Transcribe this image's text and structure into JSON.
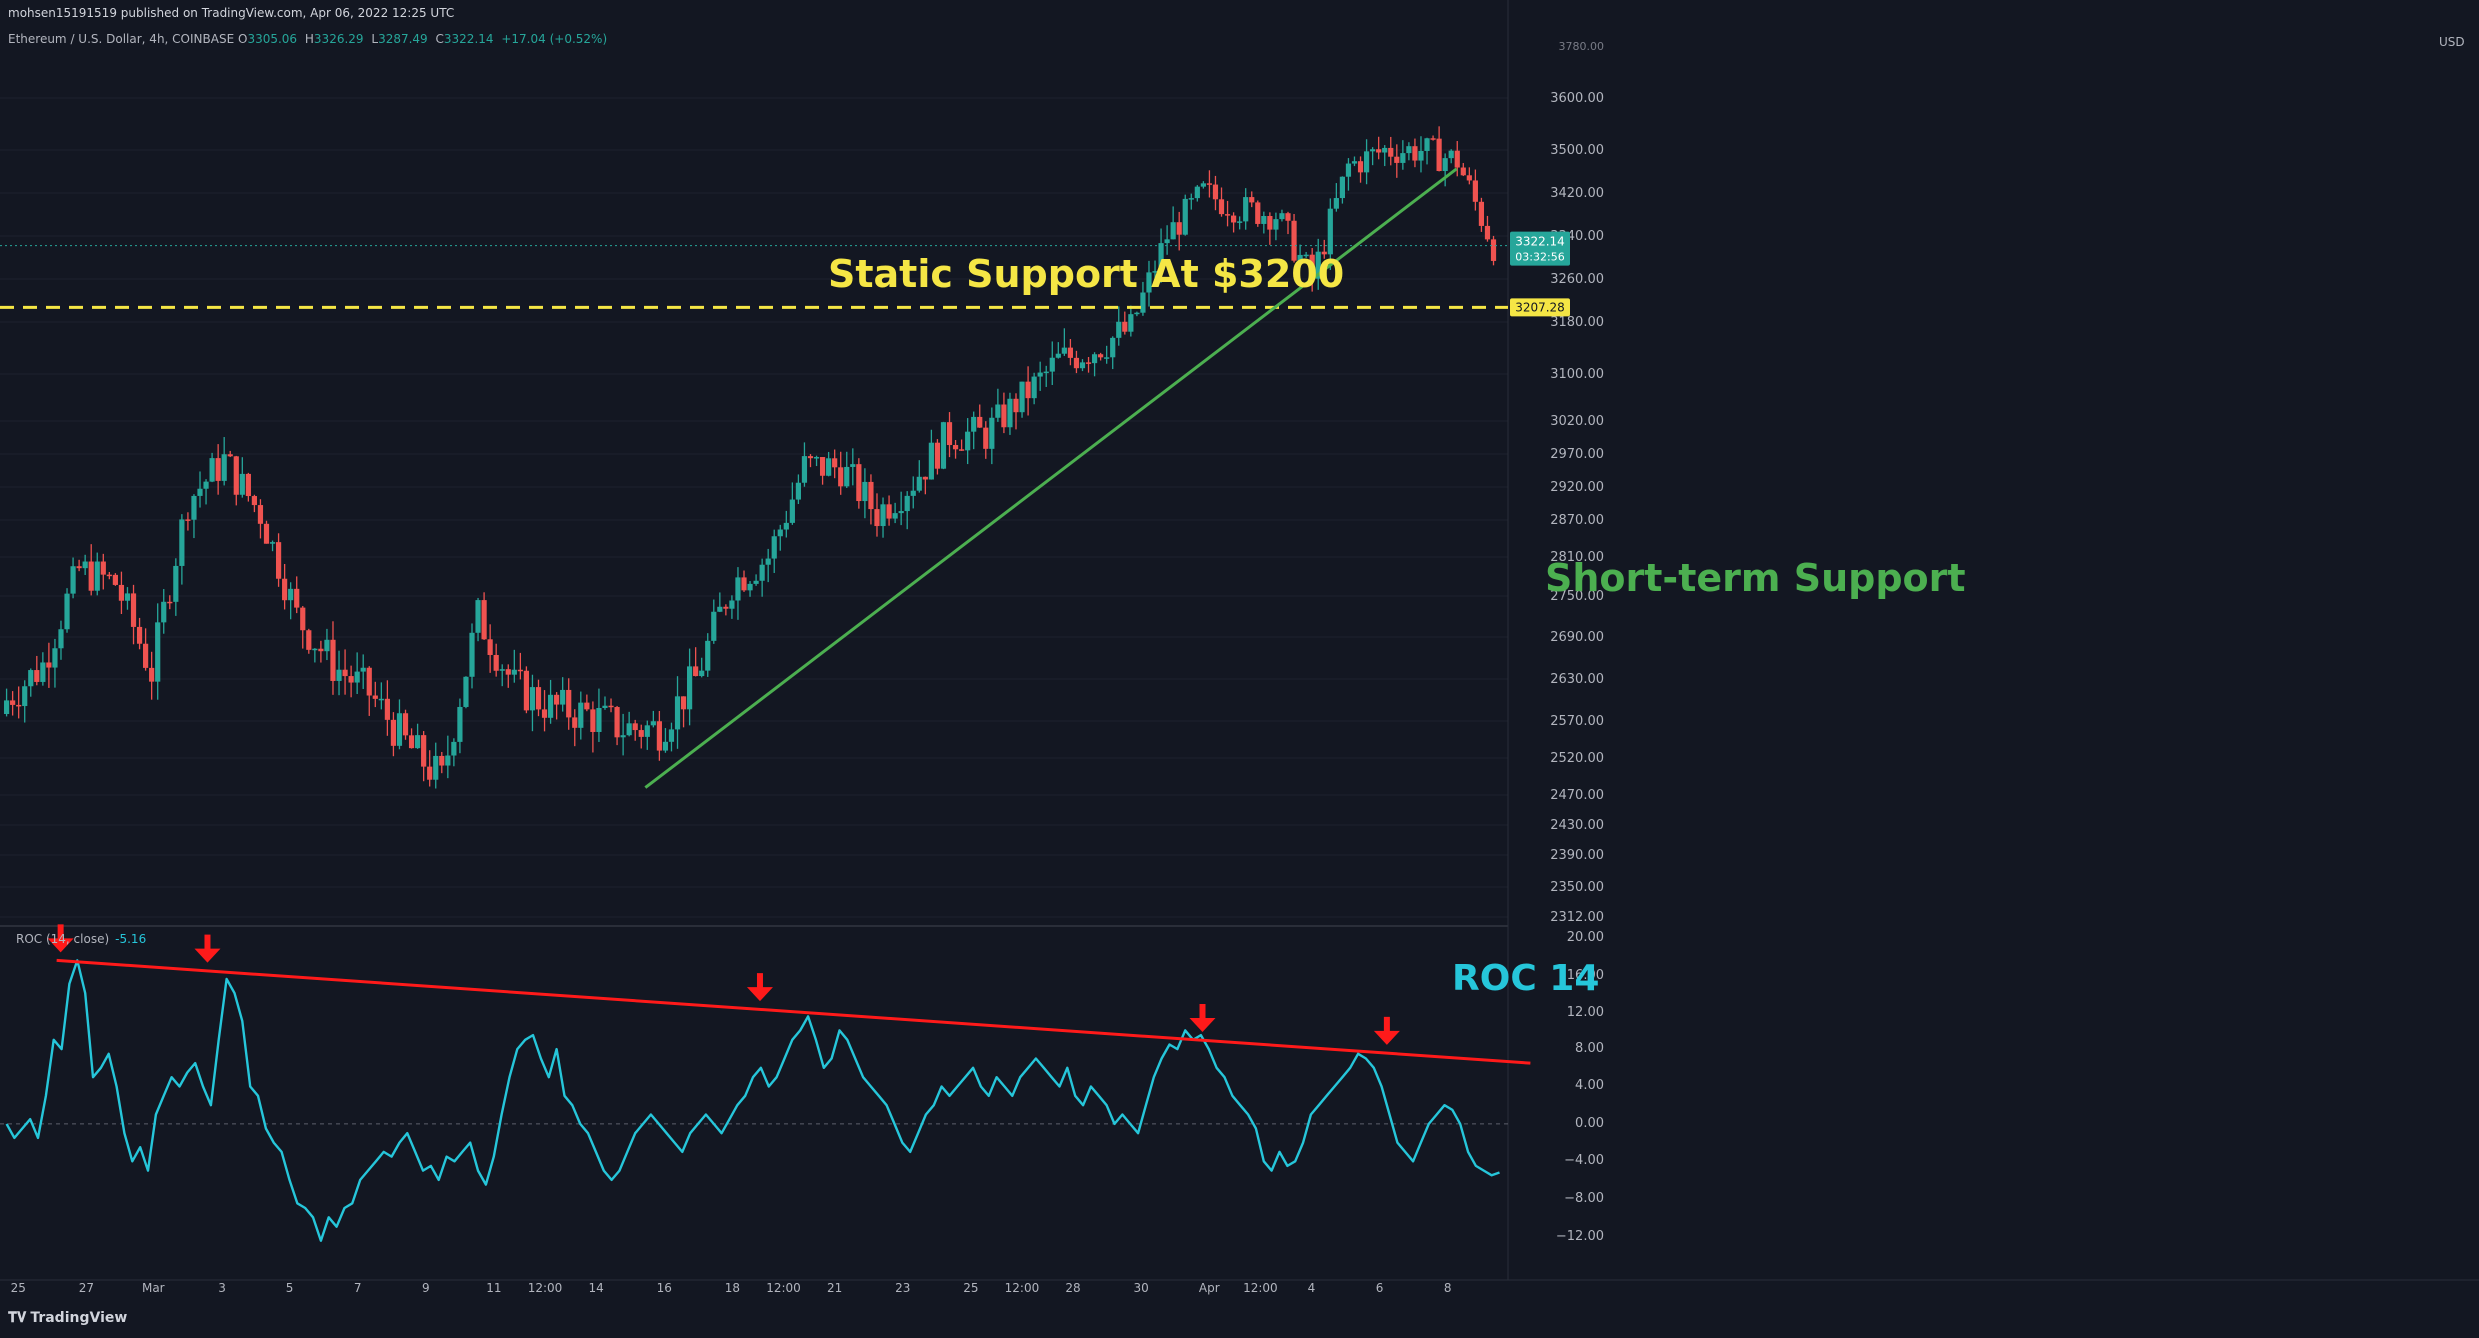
{
  "header": {
    "published": "mohsen15191519 published on TradingView.com, Apr 06, 2022 12:25 UTC",
    "symbol": "Ethereum / U.S. Dollar, 4h, COINBASE",
    "open_label": "O",
    "open": "3305.06",
    "high_label": "H",
    "high": "3326.29",
    "low_label": "L",
    "low": "3287.49",
    "close_label": "C",
    "close": "3322.14",
    "change": "+17.04 (+0.52%)"
  },
  "price_axis": {
    "currency": "USD",
    "top_partial_label": "3780.00",
    "labels": [
      "3600.00",
      "3500.00",
      "3420.00",
      "3340.00",
      "3260.00",
      "3180.00",
      "3100.00",
      "3020.00",
      "2970.00",
      "2920.00",
      "2870.00",
      "2810.00",
      "2750.00",
      "2690.00",
      "2630.00",
      "2570.00",
      "2520.00",
      "2470.00",
      "2430.00",
      "2390.00",
      "2350.00",
      "2312.00"
    ],
    "current_price_tag": "3322.14",
    "countdown": "03:32:56",
    "support_tag": "3207.28",
    "colors": {
      "up": "#26a69a",
      "down": "#ef5350",
      "support_tag_bg": "#f5e645",
      "current_tag_bg": "#26a69a"
    }
  },
  "roc_panel": {
    "indicator_label": "ROC (14, close)",
    "indicator_value": "-5.16",
    "axis_labels": [
      "20.00",
      "16.00",
      "12.00",
      "8.00",
      "4.00",
      "0.00",
      "−4.00",
      "−8.00",
      "−12.00"
    ],
    "line_color": "#26c6da"
  },
  "time_axis": {
    "labels": [
      "25",
      "27",
      "Mar",
      "3",
      "5",
      "7",
      "9",
      "11",
      "12:00",
      "14",
      "16",
      "18",
      "12:00",
      "21",
      "23",
      "25",
      "12:00",
      "28",
      "30",
      "Apr",
      "12:00",
      "4",
      "6",
      "8"
    ]
  },
  "annotations": {
    "static_support": "Static Support At $3200",
    "short_term_support": "Short-term Support",
    "roc_label": "ROC 14",
    "colors": {
      "yellow": "#f5e645",
      "green": "#4caf50",
      "red": "#ff1a1a",
      "cyan": "#26c6da"
    }
  },
  "chart_data": [
    {
      "type": "candlestick",
      "title": "Ethereum / U.S. Dollar, 4h, COINBASE",
      "ylim": [
        2290,
        3790
      ],
      "support_level": 3207.28,
      "last_close": 3322.14,
      "trendline": {
        "from": [
          "Mar 14",
          2480
        ],
        "to": [
          "Apr 5",
          3465
        ]
      },
      "close_path_approx": [
        [
          "Feb 24",
          2600
        ],
        [
          "Feb 25",
          2650
        ],
        [
          "Feb 26",
          2790
        ],
        [
          "Feb 27",
          2770
        ],
        [
          "Feb 28",
          2640
        ],
        [
          "Mar 1",
          2900
        ],
        [
          "Mar 2",
          2960
        ],
        [
          "Mar 3",
          2880
        ],
        [
          "Mar 4",
          2720
        ],
        [
          "Mar 5",
          2650
        ],
        [
          "Mar 6",
          2610
        ],
        [
          "Mar 7",
          2540
        ],
        [
          "Mar 8",
          2490
        ],
        [
          "Mar 9",
          2720
        ],
        [
          "Mar 10",
          2620
        ],
        [
          "Mar 11",
          2590
        ],
        [
          "Mar 12",
          2580
        ],
        [
          "Mar 13",
          2560
        ],
        [
          "Mar 14",
          2560
        ],
        [
          "Mar 15",
          2630
        ],
        [
          "Mar 16",
          2770
        ],
        [
          "Mar 17",
          2810
        ],
        [
          "Mar 18",
          2950
        ],
        [
          "Mar 19",
          2950
        ],
        [
          "Mar 20",
          2880
        ],
        [
          "Mar 21",
          2930
        ],
        [
          "Mar 22",
          3000
        ],
        [
          "Mar 23",
          3000
        ],
        [
          "Mar 24",
          3060
        ],
        [
          "Mar 25",
          3120
        ],
        [
          "Mar 26",
          3140
        ],
        [
          "Mar 27",
          3170
        ],
        [
          "Mar 28",
          3340
        ],
        [
          "Mar 29",
          3420
        ],
        [
          "Mar 30",
          3390
        ],
        [
          "Mar 31",
          3380
        ],
        [
          "Apr 1",
          3260
        ],
        [
          "Apr 2",
          3470
        ],
        [
          "Apr 3",
          3500
        ],
        [
          "Apr 4",
          3500
        ],
        [
          "Apr 5",
          3480
        ],
        [
          "Apr 6",
          3322
        ]
      ]
    },
    {
      "type": "line",
      "title": "ROC (14, close)",
      "ylim": [
        -15,
        22
      ],
      "series": [
        {
          "name": "ROC (14, close)",
          "values": [
            0,
            -1.5,
            -0.5,
            0.5,
            -1.5,
            3,
            9,
            8,
            15,
            17.5,
            14,
            5,
            6,
            7.5,
            4,
            -1,
            -4,
            -2.5,
            -5,
            1,
            3,
            5,
            4,
            5.5,
            6.5,
            4,
            2,
            9,
            15.5,
            14,
            11,
            4,
            3,
            -0.5,
            -2,
            -3,
            -6,
            -8.5,
            -9,
            -10,
            -12.5,
            -10,
            -11,
            -9,
            -8.5,
            -6,
            -5,
            -4,
            -3,
            -3.5,
            -2,
            -1,
            -3,
            -5,
            -4.5,
            -6,
            -3.5,
            -4,
            -3,
            -2,
            -5,
            -6.5,
            -3.5,
            1,
            5,
            8,
            9,
            9.5,
            7,
            5,
            8,
            3,
            2,
            0,
            -1,
            -3,
            -5,
            -6,
            -5,
            -3,
            -1,
            0,
            1,
            0,
            -1,
            -2,
            -3,
            -1,
            0,
            1,
            0,
            -1,
            0.5,
            2,
            3,
            5,
            6,
            4,
            5,
            7,
            9,
            10,
            11.5,
            9,
            6,
            7,
            10,
            9,
            7,
            5,
            4,
            3,
            2,
            0,
            -2,
            -3,
            -1,
            1,
            2,
            4,
            3,
            4,
            5,
            6,
            4,
            3,
            5,
            4,
            3,
            5,
            6,
            7,
            6,
            5,
            4,
            6,
            3,
            2,
            4,
            3,
            2,
            0,
            1,
            0,
            -1,
            2,
            5,
            7,
            8.5,
            8,
            10,
            9,
            9.5,
            8,
            6,
            5,
            3,
            2,
            1,
            -0.5,
            -4,
            -5,
            -3,
            -4.5,
            -4,
            -2,
            1,
            2,
            3,
            4,
            5,
            6,
            7.5,
            7,
            6,
            4,
            1,
            -2,
            -3,
            -4,
            -2,
            0,
            1,
            2,
            1.5,
            0,
            -3,
            -4.5,
            -5,
            -5.5,
            -5.2
          ]
        }
      ],
      "resistance_trendline": {
        "from": [
          "Feb 26",
          17.5
        ],
        "to": [
          "Apr 7",
          6.5
        ]
      },
      "peak_markers": [
        "Feb 26",
        "Mar 2",
        "Mar 17",
        "Mar 29",
        "Apr 3"
      ]
    }
  ]
}
